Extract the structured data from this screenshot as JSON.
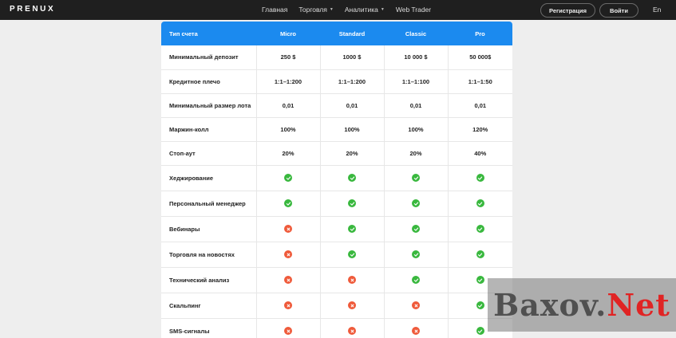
{
  "header": {
    "logo": "PRENUX",
    "nav": [
      "Главная",
      "Торговля",
      "Аналитика",
      "Web Trader"
    ],
    "register": "Регистрация",
    "login": "Войти",
    "lang": "En"
  },
  "table": {
    "header": [
      "Тип счета",
      "Micro",
      "Standard",
      "Classic",
      "Pro"
    ],
    "rows": [
      [
        "Минимальный депозит",
        "250 $",
        "1000 $",
        "10 000 $",
        "50 000$"
      ],
      [
        "Кредитное плечо",
        "1:1–1:200",
        "1:1–1:200",
        "1:1–1:100",
        "1:1–1:50"
      ],
      [
        "Минимальный размер лота",
        "0,01",
        "0,01",
        "0,01",
        "0,01"
      ],
      [
        "Маржин-колл",
        "100%",
        "100%",
        "100%",
        "120%"
      ],
      [
        "Стоп-аут",
        "20%",
        "20%",
        "20%",
        "40%"
      ]
    ],
    "feature_rows": [
      {
        "label": "Хеджирование",
        "values": [
          "check-icon",
          "check-icon",
          "check-icon",
          "check-icon"
        ]
      },
      {
        "label": "Персональный менеджер",
        "values": [
          "check-icon",
          "check-icon",
          "check-icon",
          "check-icon"
        ]
      },
      {
        "label": "Вебинары",
        "values": [
          "cross-icon",
          "check-icon",
          "check-icon",
          "check-icon"
        ]
      },
      {
        "label": "Торговля на новостях",
        "values": [
          "cross-icon",
          "check-icon",
          "check-icon",
          "check-icon"
        ]
      },
      {
        "label": "Технический анализ",
        "values": [
          "cross-icon",
          "cross-icon",
          "check-icon",
          "check-icon"
        ]
      },
      {
        "label": "Скальпинг",
        "values": [
          "cross-icon",
          "cross-icon",
          "cross-icon",
          "check-icon"
        ]
      },
      {
        "label": "SMS-сигналы",
        "values": [
          "cross-icon",
          "cross-icon",
          "cross-icon",
          "check-icon"
        ]
      }
    ]
  },
  "watermark": {
    "part1": "Baxov.",
    "part2": "Net"
  },
  "colors": {
    "header_blue": "#1b8aef",
    "check_green": "#39b83e",
    "cross_red": "#ef5a3a",
    "topbar": "#1f1f1f"
  }
}
